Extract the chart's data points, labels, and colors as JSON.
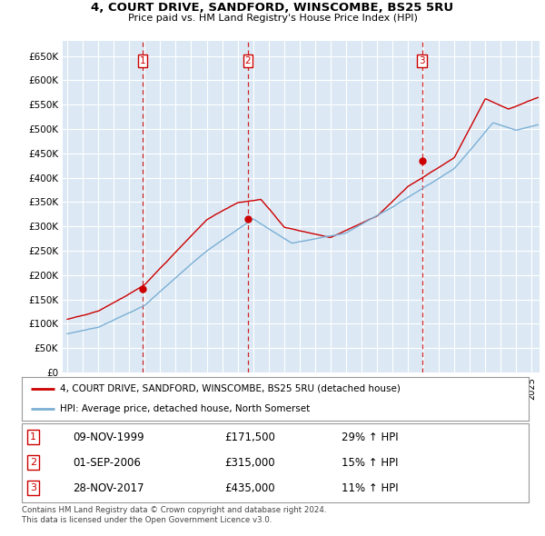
{
  "title": "4, COURT DRIVE, SANDFORD, WINSCOMBE, BS25 5RU",
  "subtitle": "Price paid vs. HM Land Registry's House Price Index (HPI)",
  "ytick_labels": [
    "£0",
    "£50K",
    "£100K",
    "£150K",
    "£200K",
    "£250K",
    "£300K",
    "£350K",
    "£400K",
    "£450K",
    "£500K",
    "£550K",
    "£600K",
    "£650K"
  ],
  "ytick_values": [
    0,
    50000,
    100000,
    150000,
    200000,
    250000,
    300000,
    350000,
    400000,
    450000,
    500000,
    550000,
    600000,
    650000
  ],
  "ylim": [
    0,
    680000
  ],
  "xlim_start": 1994.7,
  "xlim_end": 2025.5,
  "line1_color": "#cc0000",
  "line2_color": "#7bafd4",
  "bg_chart": "#dce9f5",
  "grid_color": "#ffffff",
  "purchase_markers": [
    {
      "num": 1,
      "year": 1999.86,
      "price": 171500
    },
    {
      "num": 2,
      "year": 2006.67,
      "price": 315000
    },
    {
      "num": 3,
      "year": 2017.91,
      "price": 435000
    }
  ],
  "legend_label1": "4, COURT DRIVE, SANDFORD, WINSCOMBE, BS25 5RU (detached house)",
  "legend_label2": "HPI: Average price, detached house, North Somerset",
  "footer1": "Contains HM Land Registry data © Crown copyright and database right 2024.",
  "footer2": "This data is licensed under the Open Government Licence v3.0.",
  "table_rows": [
    {
      "num": 1,
      "date": "09-NOV-1999",
      "price": "£171,500",
      "pct": "29% ↑ HPI"
    },
    {
      "num": 2,
      "date": "01-SEP-2006",
      "price": "£315,000",
      "pct": "15% ↑ HPI"
    },
    {
      "num": 3,
      "date": "28-NOV-2017",
      "price": "£435,000",
      "pct": "11% ↑ HPI"
    }
  ]
}
